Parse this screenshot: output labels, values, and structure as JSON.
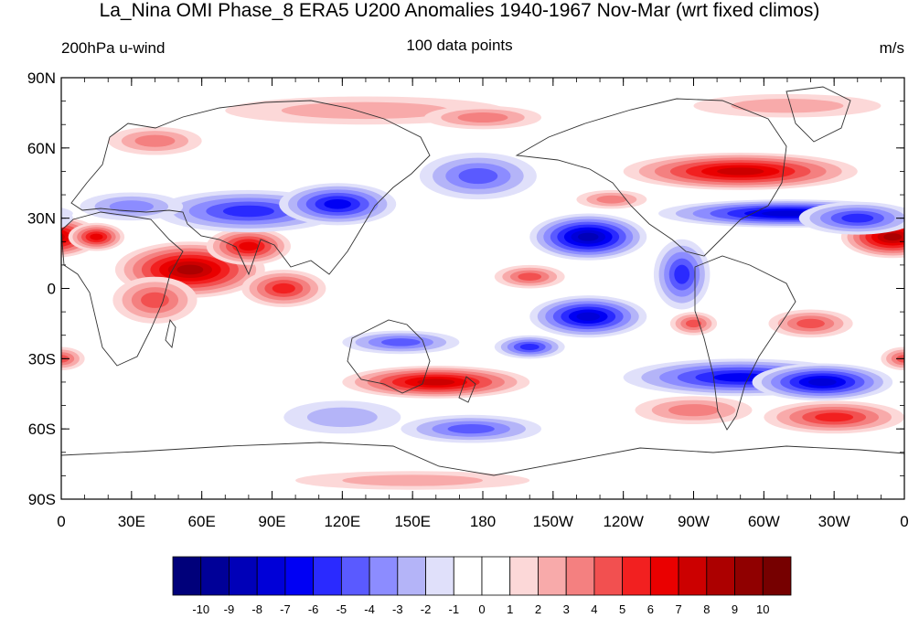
{
  "title": "La_Nina OMI Phase_8 ERA5 U200 Anomalies 1940-1967 Nov-Mar (wrt fixed climos)",
  "left_label": "200hPa u-wind",
  "center_label": "100 data points",
  "units": "m/s",
  "lat_ticks": [
    "90N",
    "60N",
    "30N",
    "0",
    "30S",
    "60S",
    "90S"
  ],
  "lon_ticks": [
    "0",
    "30E",
    "60E",
    "90E",
    "120E",
    "150E",
    "180",
    "150W",
    "120W",
    "90W",
    "60W",
    "30W",
    "0"
  ],
  "colorbar": {
    "labels": [
      "-10",
      "-9",
      "-8",
      "-7",
      "-6",
      "-5",
      "-4",
      "-3",
      "-2",
      "-1",
      "0",
      "1",
      "2",
      "3",
      "4",
      "5",
      "6",
      "7",
      "8",
      "9",
      "10"
    ],
    "colors": [
      "#00007a",
      "#000098",
      "#0000b8",
      "#0000d8",
      "#0000f4",
      "#2a2aff",
      "#5a5aff",
      "#8c8cff",
      "#b4b4f8",
      "#e0e0fa",
      "#ffffff",
      "#ffffff",
      "#fcd8d8",
      "#f8aaaa",
      "#f48080",
      "#f25050",
      "#f22020",
      "#ea0000",
      "#cc0000",
      "#ac0000",
      "#900000",
      "#760000"
    ]
  },
  "anomaly_blobs": [
    {
      "lon": 355,
      "lat": 22,
      "rlon": 22,
      "rlat": 9,
      "value": 8
    },
    {
      "lon": 15,
      "lat": 22,
      "rlon": 12,
      "rlat": 6,
      "value": 6
    },
    {
      "lon": 55,
      "lat": 8,
      "rlon": 32,
      "rlat": 12,
      "value": 8
    },
    {
      "lon": 80,
      "lat": 18,
      "rlon": 18,
      "rlat": 8,
      "value": 6
    },
    {
      "lon": 95,
      "lat": 0,
      "rlon": 18,
      "rlat": 8,
      "value": 5
    },
    {
      "lon": 40,
      "lat": -5,
      "rlon": 18,
      "rlat": 10,
      "value": 4
    },
    {
      "lon": 80,
      "lat": 33,
      "rlon": 40,
      "rlat": 9,
      "value": -5
    },
    {
      "lon": 118,
      "lat": 36,
      "rlon": 25,
      "rlat": 9,
      "value": -6
    },
    {
      "lon": 30,
      "lat": 35,
      "rlon": 22,
      "rlat": 6,
      "value": -3
    },
    {
      "lon": 178,
      "lat": 48,
      "rlon": 25,
      "rlat": 10,
      "value": -4
    },
    {
      "lon": 290,
      "lat": 50,
      "rlon": 50,
      "rlat": 8,
      "value": 7
    },
    {
      "lon": 310,
      "lat": 32,
      "rlon": 55,
      "rlat": 6,
      "value": -7
    },
    {
      "lon": 340,
      "lat": 30,
      "rlon": 25,
      "rlat": 7,
      "value": -5
    },
    {
      "lon": 225,
      "lat": 22,
      "rlon": 25,
      "rlat": 10,
      "value": -8
    },
    {
      "lon": 265,
      "lat": 6,
      "rlon": 12,
      "rlat": 15,
      "value": -5
    },
    {
      "lon": 225,
      "lat": -12,
      "rlon": 25,
      "rlat": 9,
      "value": -7
    },
    {
      "lon": 200,
      "lat": 5,
      "rlon": 15,
      "rlat": 5,
      "value": 4
    },
    {
      "lon": 160,
      "lat": -40,
      "rlon": 40,
      "rlat": 7,
      "value": 7
    },
    {
      "lon": 145,
      "lat": -23,
      "rlon": 25,
      "rlat": 5,
      "value": -4
    },
    {
      "lon": 200,
      "lat": -25,
      "rlon": 15,
      "rlat": 5,
      "value": -5
    },
    {
      "lon": 290,
      "lat": -38,
      "rlon": 50,
      "rlat": 8,
      "value": -6
    },
    {
      "lon": 325,
      "lat": -40,
      "rlon": 30,
      "rlat": 8,
      "value": -7
    },
    {
      "lon": 320,
      "lat": -15,
      "rlon": 18,
      "rlat": 6,
      "value": 4
    },
    {
      "lon": 270,
      "lat": -15,
      "rlon": 10,
      "rlat": 5,
      "value": 4
    },
    {
      "lon": 330,
      "lat": -55,
      "rlon": 30,
      "rlat": 7,
      "value": 5
    },
    {
      "lon": 270,
      "lat": -52,
      "rlon": 25,
      "rlat": 6,
      "value": 3
    },
    {
      "lon": 175,
      "lat": -60,
      "rlon": 30,
      "rlat": 6,
      "value": -4
    },
    {
      "lon": 120,
      "lat": -55,
      "rlon": 25,
      "rlat": 7,
      "value": -2
    },
    {
      "lon": 130,
      "lat": 76,
      "rlon": 60,
      "rlat": 6,
      "value": 2
    },
    {
      "lon": 180,
      "lat": 73,
      "rlon": 25,
      "rlat": 5,
      "value": 3
    },
    {
      "lon": 40,
      "lat": 63,
      "rlon": 20,
      "rlat": 6,
      "value": 3
    },
    {
      "lon": 0,
      "lat": -30,
      "rlon": 10,
      "rlat": 5,
      "value": 4
    },
    {
      "lon": 150,
      "lat": -82,
      "rlon": 50,
      "rlat": 4,
      "value": 2
    },
    {
      "lon": 310,
      "lat": 78,
      "rlon": 40,
      "rlat": 5,
      "value": 2
    },
    {
      "lon": 235,
      "lat": 38,
      "rlon": 15,
      "rlat": 4,
      "value": 3
    }
  ]
}
